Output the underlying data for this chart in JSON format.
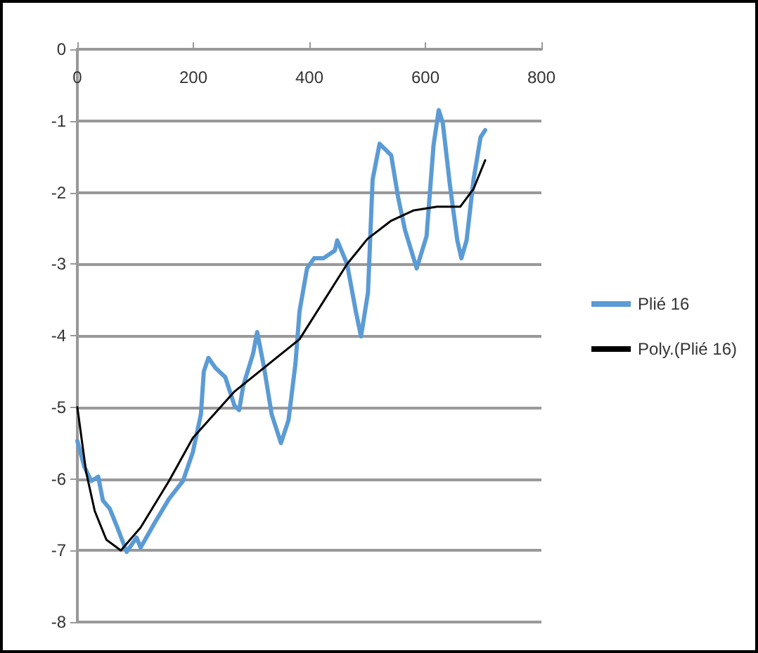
{
  "chart_data": {
    "type": "line",
    "xlim": [
      0,
      800
    ],
    "xticks": [
      0,
      200,
      400,
      600,
      800
    ],
    "ylim": [
      -8,
      0
    ],
    "yticks": [
      -8,
      -7,
      -6,
      -5,
      -4,
      -3,
      -2,
      -1,
      0
    ],
    "grid": "y",
    "legend": "right",
    "marker": "none",
    "line_style": "solid",
    "series": [
      {
        "name": "Plié 16",
        "color": "#5b9bd5",
        "x": [
          0,
          12,
          24,
          36,
          44,
          56,
          68,
          85,
          102,
          109,
          133,
          158,
          182,
          199,
          213,
          218,
          226,
          238,
          255,
          271,
          279,
          286,
          303,
          310,
          322,
          335,
          351,
          364,
          376,
          383,
          396,
          408,
          424,
          444,
          448,
          465,
          480,
          489,
          501,
          509,
          521,
          541,
          553,
          565,
          585,
          602,
          614,
          623,
          630,
          642,
          655,
          662,
          671,
          683,
          695,
          703
        ],
        "values": [
          -5.47,
          -5.83,
          -6.03,
          -5.97,
          -6.3,
          -6.42,
          -6.66,
          -7.02,
          -6.82,
          -6.96,
          -6.62,
          -6.28,
          -6.03,
          -5.63,
          -5.1,
          -4.5,
          -4.31,
          -4.45,
          -4.58,
          -4.98,
          -5.04,
          -4.7,
          -4.25,
          -3.95,
          -4.45,
          -5.1,
          -5.5,
          -5.18,
          -4.39,
          -3.66,
          -3.06,
          -2.92,
          -2.92,
          -2.81,
          -2.67,
          -3.0,
          -3.66,
          -4.01,
          -3.4,
          -1.82,
          -1.32,
          -1.48,
          -2.07,
          -2.53,
          -3.06,
          -2.61,
          -1.34,
          -0.85,
          -1.03,
          -1.88,
          -2.67,
          -2.92,
          -2.67,
          -1.82,
          -1.23,
          -1.13
        ]
      },
      {
        "name": "Poly.(Plié 16)",
        "color": "#000000",
        "x": [
          0,
          15,
          30,
          50,
          75,
          109,
          158,
          199,
          271,
          383,
          465,
          500,
          540,
          580,
          620,
          660,
          683,
          703
        ],
        "values": [
          -5.0,
          -5.9,
          -6.45,
          -6.85,
          -7.0,
          -6.68,
          -6.03,
          -5.43,
          -4.78,
          -4.05,
          -3.0,
          -2.65,
          -2.4,
          -2.25,
          -2.2,
          -2.2,
          -1.95,
          -1.55
        ]
      }
    ]
  }
}
